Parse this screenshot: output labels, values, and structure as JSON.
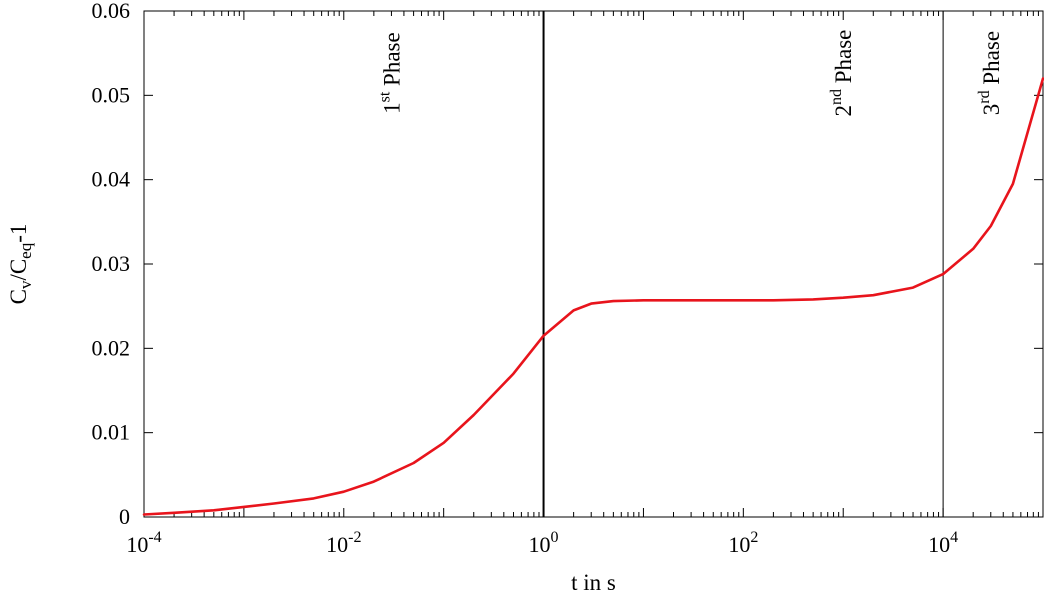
{
  "chart_data": {
    "type": "line",
    "xlabel": "t in s",
    "ylabel": {
      "base": "C",
      "sub1": "v",
      "mid": "/C",
      "sub2": "eq",
      "tail": "-1"
    },
    "x_scale": "log",
    "xlim": [
      0.0001,
      100000
    ],
    "ylim": [
      0,
      0.06
    ],
    "grid": false,
    "legend": "none",
    "x_ticks": [
      {
        "value": 0.0001,
        "base": "10",
        "exp": "-4"
      },
      {
        "value": 0.01,
        "base": "10",
        "exp": "-2"
      },
      {
        "value": 1,
        "base": "10",
        "exp": "0"
      },
      {
        "value": 100,
        "base": "10",
        "exp": "2"
      },
      {
        "value": 10000,
        "base": "10",
        "exp": "4"
      }
    ],
    "y_ticks": [
      {
        "value": 0,
        "label": "0"
      },
      {
        "value": 0.01,
        "label": "0.01"
      },
      {
        "value": 0.02,
        "label": "0.02"
      },
      {
        "value": 0.03,
        "label": "0.03"
      },
      {
        "value": 0.04,
        "label": "0.04"
      },
      {
        "value": 0.05,
        "label": "0.05"
      },
      {
        "value": 0.06,
        "label": "0.06"
      }
    ],
    "series": [
      {
        "color": "#e8141c",
        "x": [
          0.0001,
          0.0002,
          0.0005,
          0.001,
          0.002,
          0.005,
          0.01,
          0.02,
          0.05,
          0.1,
          0.2,
          0.5,
          1,
          2,
          3,
          5,
          10,
          20,
          50,
          100,
          200,
          500,
          1000,
          2000,
          5000,
          10000,
          20000,
          30000,
          50000,
          100000
        ],
        "y": [
          0.0003,
          0.0005,
          0.0008,
          0.0012,
          0.0016,
          0.0022,
          0.003,
          0.0042,
          0.0064,
          0.0088,
          0.0121,
          0.017,
          0.0215,
          0.0245,
          0.0253,
          0.0256,
          0.0257,
          0.0257,
          0.0257,
          0.0257,
          0.0257,
          0.0258,
          0.026,
          0.0263,
          0.0272,
          0.0288,
          0.0318,
          0.0345,
          0.0395,
          0.052
        ]
      }
    ],
    "vlines": [
      {
        "x": 1,
        "width": 2
      },
      {
        "x": 10000,
        "width": 1
      }
    ],
    "annotations": [
      {
        "num": "1",
        "sup": "st",
        "word": " Phase",
        "x": 0.03,
        "y": 0.046
      },
      {
        "num": "2",
        "sup": "nd",
        "word": " Phase",
        "x": 1000,
        "y": 0.046
      },
      {
        "num": "3",
        "sup": "rd",
        "word": " Phase",
        "x": 30000,
        "y": 0.046
      }
    ]
  }
}
